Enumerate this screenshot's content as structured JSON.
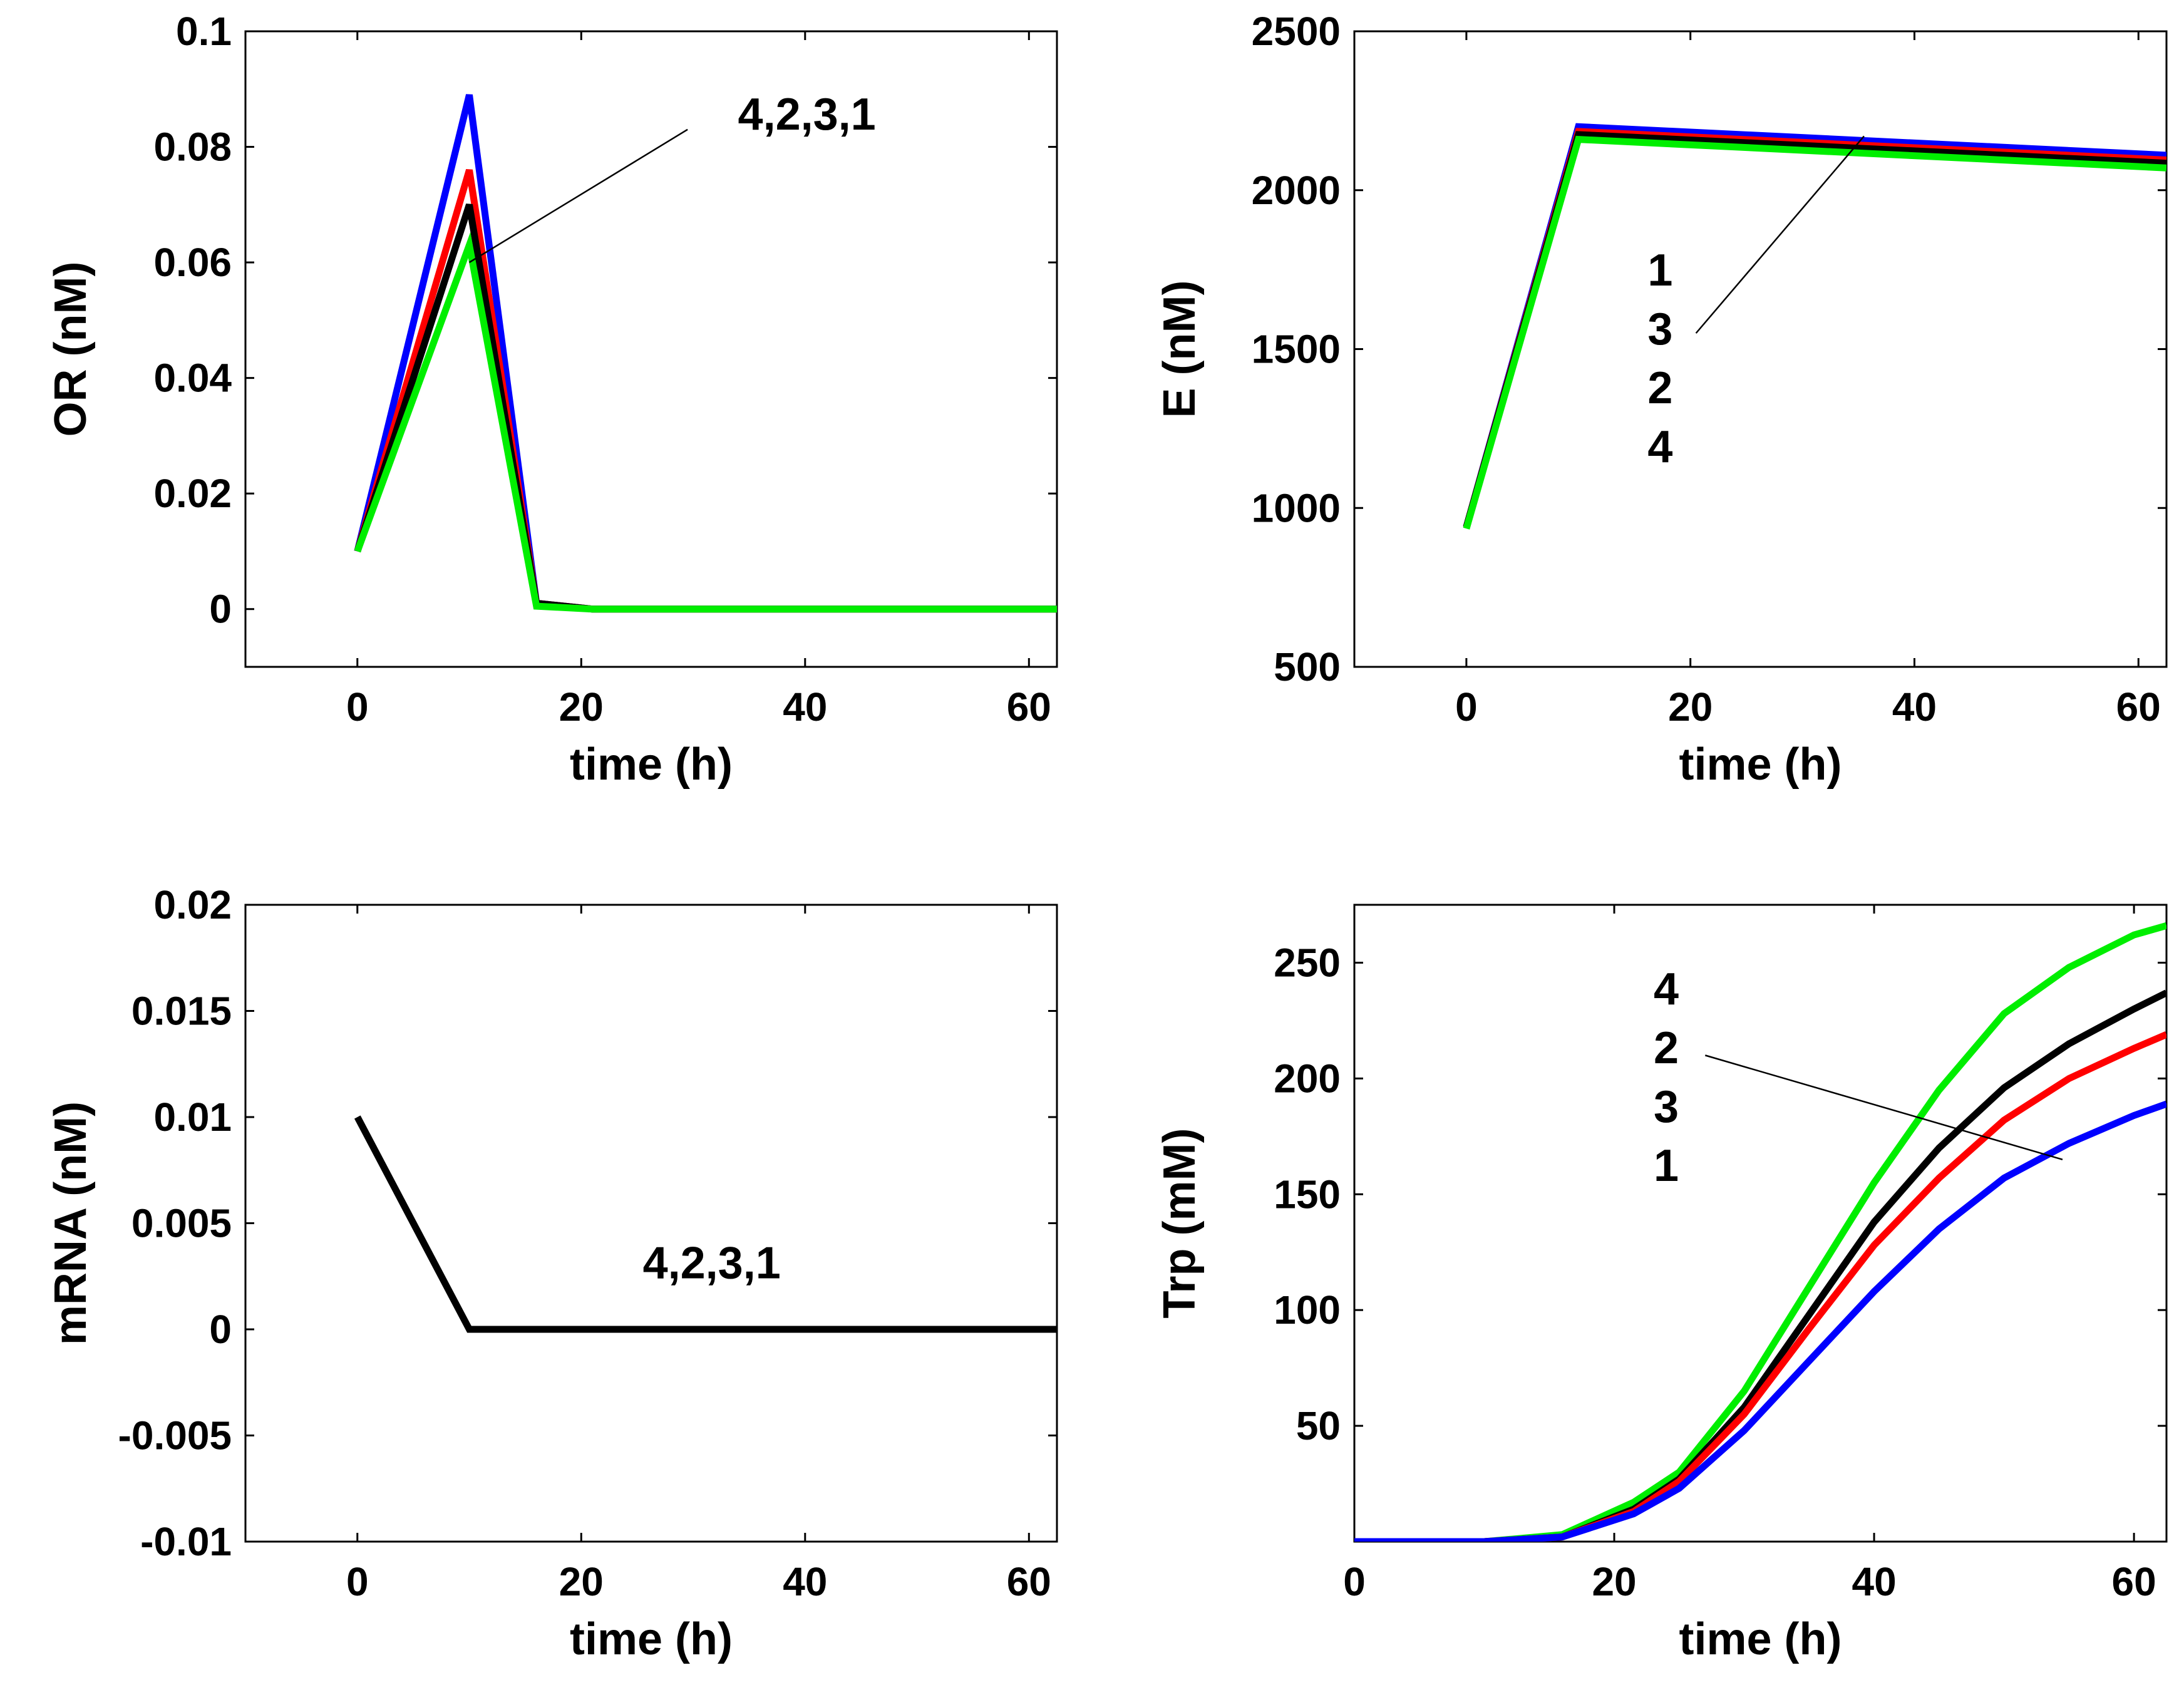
{
  "chart_data": [
    {
      "type": "line",
      "title": "",
      "xlabel": "time (h)",
      "ylabel": "OR (nM)",
      "xlim": [
        -10,
        62.5
      ],
      "ylim": [
        -0.01,
        0.1
      ],
      "xticks": [
        0,
        20,
        40,
        60
      ],
      "xtick_labels": [
        "0",
        "20",
        "40",
        "60"
      ],
      "yticks": [
        0,
        0.02,
        0.04,
        0.06,
        0.08,
        0.1
      ],
      "ytick_labels": [
        "0",
        "0.02",
        "0.04",
        "0.06",
        "0.08",
        "0.1"
      ],
      "grid": false,
      "series": [
        {
          "name": "blue",
          "color": "#0000ff",
          "x": [
            0,
            10,
            16,
            21,
            62.5
          ],
          "y": [
            0.01,
            0.089,
            0.001,
            0,
            0
          ]
        },
        {
          "name": "red",
          "color": "#ff0000",
          "x": [
            0,
            10,
            16,
            21,
            62.5
          ],
          "y": [
            0.01,
            0.076,
            0.001,
            0,
            0
          ]
        },
        {
          "name": "black",
          "color": "#000000",
          "x": [
            0,
            10,
            16,
            21,
            62.5
          ],
          "y": [
            0.01,
            0.07,
            0.001,
            0,
            0
          ]
        },
        {
          "name": "green",
          "color": "#00ee00",
          "x": [
            0,
            10,
            16,
            21,
            62.5
          ],
          "y": [
            0.01,
            0.063,
            0.0005,
            0,
            0
          ]
        }
      ],
      "annotations": [
        {
          "lines": [
            "4,2,3,1"
          ],
          "x": 34,
          "y": 0.083,
          "anchor": "start",
          "arrow_from": [
            29.5,
            0.083
          ],
          "arrow_to": [
            10,
            0.06
          ]
        }
      ]
    },
    {
      "type": "line",
      "title": "",
      "xlabel": "time (h)",
      "ylabel": "E (nM)",
      "xlim": [
        -10,
        62.5
      ],
      "ylim": [
        500,
        2500
      ],
      "xticks": [
        0,
        20,
        40,
        60
      ],
      "xtick_labels": [
        "0",
        "20",
        "40",
        "60"
      ],
      "yticks": [
        500,
        1000,
        1500,
        2000,
        2500
      ],
      "ytick_labels": [
        "500",
        "1000",
        "1500",
        "2000",
        "2500"
      ],
      "grid": false,
      "series": [
        {
          "name": "blue",
          "color": "#0000ff",
          "x": [
            0,
            10,
            62.5
          ],
          "y": [
            940,
            2200,
            2110
          ]
        },
        {
          "name": "red",
          "color": "#ff0000",
          "x": [
            0,
            10,
            62.5
          ],
          "y": [
            940,
            2185,
            2095
          ]
        },
        {
          "name": "black",
          "color": "#000000",
          "x": [
            0,
            10,
            62.5
          ],
          "y": [
            940,
            2175,
            2085
          ]
        },
        {
          "name": "green",
          "color": "#00ee00",
          "x": [
            0,
            10,
            62.5
          ],
          "y": [
            935,
            2160,
            2070
          ]
        }
      ],
      "annotations": [
        {
          "lines": [
            "1",
            "3",
            "2",
            "4"
          ],
          "x": 17.3,
          "y": 1700,
          "anchor": "middle",
          "arrow_from": [
            20.5,
            1550
          ],
          "arrow_to": [
            35.5,
            2170
          ]
        }
      ]
    },
    {
      "type": "line",
      "title": "",
      "xlabel": "time (h)",
      "ylabel": "mRNA (nM)",
      "xlim": [
        -10,
        62.5
      ],
      "ylim": [
        -0.01,
        0.02
      ],
      "xticks": [
        0,
        20,
        40,
        60
      ],
      "xtick_labels": [
        "0",
        "20",
        "40",
        "60"
      ],
      "yticks": [
        -0.01,
        -0.005,
        0,
        0.005,
        0.01,
        0.015,
        0.02
      ],
      "ytick_labels": [
        "-0.01",
        "-0.005",
        "0",
        "0.005",
        "0.01",
        "0.015",
        "0.02"
      ],
      "grid": false,
      "series": [
        {
          "name": "black",
          "color": "#000000",
          "x": [
            0,
            10,
            62.5
          ],
          "y": [
            0.01,
            0,
            0
          ]
        }
      ],
      "annotations": [
        {
          "lines": [
            "4,2,3,1"
          ],
          "x": 25.5,
          "y": 0.0024,
          "anchor": "start"
        }
      ]
    },
    {
      "type": "line",
      "title": "",
      "xlabel": "time (h)",
      "ylabel": "Trp (mM)",
      "xlim": [
        0,
        62.5
      ],
      "ylim": [
        0,
        275
      ],
      "xticks": [
        0,
        20,
        40,
        60
      ],
      "xtick_labels": [
        "0",
        "20",
        "40",
        "60"
      ],
      "yticks": [
        50,
        100,
        150,
        200,
        250
      ],
      "ytick_labels": [
        "50",
        "100",
        "150",
        "200",
        "250"
      ],
      "grid": false,
      "series": [
        {
          "name": "green",
          "color": "#00ee00",
          "x": [
            0,
            10,
            16,
            21.5,
            25,
            30,
            35,
            40,
            45,
            50,
            55,
            60,
            62.5
          ],
          "y": [
            0,
            0,
            3,
            17,
            30,
            65,
            110,
            155,
            195,
            228,
            248,
            262,
            266
          ]
        },
        {
          "name": "black",
          "color": "#000000",
          "x": [
            0,
            10,
            16,
            21.5,
            25,
            30,
            35,
            40,
            45,
            50,
            55,
            60,
            62.5
          ],
          "y": [
            0,
            0,
            2,
            14,
            27,
            58,
            98,
            138,
            170,
            196,
            215,
            230,
            237
          ]
        },
        {
          "name": "red",
          "color": "#ff0000",
          "x": [
            0,
            10,
            16,
            21.5,
            25,
            30,
            35,
            40,
            45,
            50,
            55,
            60,
            62.5
          ],
          "y": [
            0,
            0,
            2,
            13,
            26,
            55,
            92,
            128,
            157,
            182,
            200,
            213,
            219
          ]
        },
        {
          "name": "blue",
          "color": "#0000ff",
          "x": [
            0,
            10,
            16,
            21.5,
            25,
            30,
            35,
            40,
            45,
            50,
            55,
            60,
            62.5
          ],
          "y": [
            0,
            0,
            2,
            12,
            23,
            48,
            78,
            108,
            135,
            157,
            172,
            184,
            189
          ]
        }
      ],
      "annotations": [
        {
          "lines": [
            "4",
            "2",
            "3",
            "1"
          ],
          "x": 24,
          "y": 232,
          "anchor": "middle",
          "arrow_from": [
            27,
            210
          ],
          "arrow_to": [
            54.5,
            165
          ]
        }
      ]
    }
  ]
}
